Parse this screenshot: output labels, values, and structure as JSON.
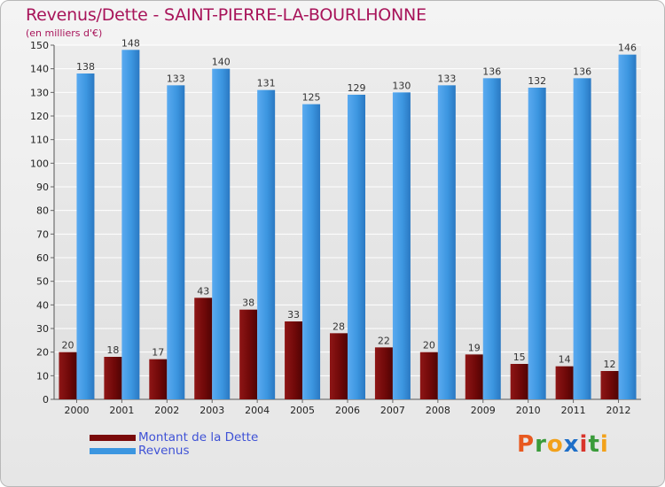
{
  "colors": {
    "title": "#a8145a",
    "dette": "#7a0a0a",
    "revenus": "#3c96e0",
    "legend_text": "#3f52d6",
    "axis_text": "#222222"
  },
  "chart_data": {
    "type": "bar",
    "title": "Revenus/Dette - SAINT-PIERRE-LA-BOURLHONNE",
    "subtitle": "(en milliers d'€)",
    "xlabel": "",
    "ylabel": "",
    "ylim": [
      0,
      150
    ],
    "yticks": [
      0,
      10,
      20,
      30,
      40,
      50,
      60,
      70,
      80,
      90,
      100,
      110,
      120,
      130,
      140,
      150
    ],
    "grid": true,
    "legend_position": "bottom-left",
    "categories": [
      "2000",
      "2001",
      "2002",
      "2003",
      "2004",
      "2005",
      "2006",
      "2007",
      "2008",
      "2009",
      "2010",
      "2011",
      "2012"
    ],
    "series": [
      {
        "name": "Montant de la Dette",
        "color": "#7a0a0a",
        "values": [
          20,
          18,
          17,
          43,
          38,
          33,
          28,
          22,
          20,
          19,
          15,
          14,
          12
        ]
      },
      {
        "name": "Revenus",
        "color": "#3c96e0",
        "values": [
          138,
          148,
          133,
          140,
          131,
          125,
          129,
          130,
          133,
          136,
          132,
          136,
          146
        ]
      }
    ]
  },
  "legend": {
    "items": [
      {
        "label": "Montant de la Dette",
        "color": "#7a0a0a"
      },
      {
        "label": "Revenus",
        "color": "#3c96e0"
      }
    ]
  },
  "brand": {
    "letters": [
      "P",
      "r",
      "o",
      "x",
      "i",
      "t",
      "i"
    ],
    "colors": [
      "#e8591f",
      "#3a9b3a",
      "#f2a11a",
      "#1e6fc8",
      "#d9342b",
      "#3a9b3a",
      "#f2a11a"
    ]
  }
}
